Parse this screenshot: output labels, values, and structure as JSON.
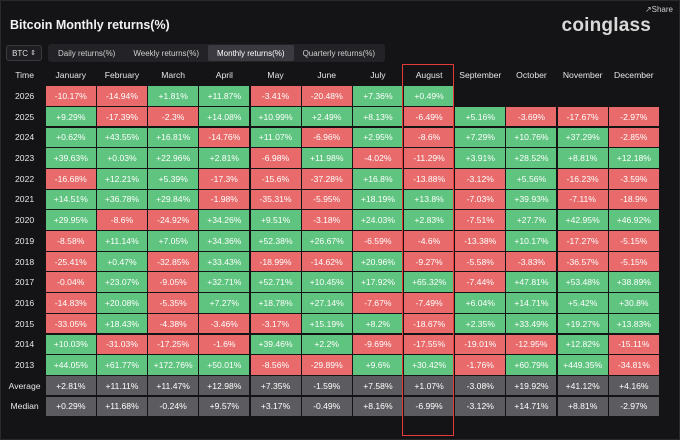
{
  "header": {
    "title": "Bitcoin Monthly returns(%)",
    "brand": "coinglass",
    "share_label": "Share"
  },
  "controls": {
    "coin": "BTC",
    "tabs": [
      "Daily returns(%)",
      "Weekly returns(%)",
      "Monthly returns(%)",
      "Quarterly returns(%)"
    ],
    "active_tab": 2
  },
  "colors": {
    "positive": "#5ec47f",
    "negative": "#e86a6a",
    "stat": "#5c5c60",
    "highlight": "#e33a3a"
  },
  "table": {
    "time_header": "Time",
    "months": [
      "January",
      "February",
      "March",
      "April",
      "May",
      "June",
      "July",
      "August",
      "September",
      "October",
      "November",
      "December"
    ],
    "highlighted_month": "August",
    "rows": [
      {
        "label": "2026",
        "kind": "year",
        "values": [
          "-10.17%",
          "-14.94%",
          "+1.81%",
          "+11.87%",
          "-3.41%",
          "-20.48%",
          "+7.36%",
          "+0.49%",
          "",
          "",
          "",
          ""
        ]
      },
      {
        "label": "2025",
        "kind": "year",
        "values": [
          "+9.29%",
          "-17.39%",
          "-2.3%",
          "+14.08%",
          "+10.99%",
          "+2.49%",
          "+8.13%",
          "-6.49%",
          "+5.16%",
          "-3.69%",
          "-17.67%",
          "-2.97%"
        ]
      },
      {
        "label": "2024",
        "kind": "year",
        "values": [
          "+0.62%",
          "+43.55%",
          "+16.81%",
          "-14.76%",
          "+11.07%",
          "-6.96%",
          "+2.95%",
          "-8.6%",
          "+7.29%",
          "+10.76%",
          "+37.29%",
          "-2.85%"
        ]
      },
      {
        "label": "2023",
        "kind": "year",
        "values": [
          "+39.63%",
          "+0.03%",
          "+22.96%",
          "+2.81%",
          "-6.98%",
          "+11.98%",
          "-4.02%",
          "-11.29%",
          "+3.91%",
          "+28.52%",
          "+8.81%",
          "+12.18%"
        ]
      },
      {
        "label": "2022",
        "kind": "year",
        "values": [
          "-16.68%",
          "+12.21%",
          "+5.39%",
          "-17.3%",
          "-15.6%",
          "-37.28%",
          "+16.8%",
          "-13.88%",
          "-3.12%",
          "+5.56%",
          "-16.23%",
          "-3.59%"
        ]
      },
      {
        "label": "2021",
        "kind": "year",
        "values": [
          "+14.51%",
          "+36.78%",
          "+29.84%",
          "-1.98%",
          "-35.31%",
          "-5.95%",
          "+18.19%",
          "+13.8%",
          "-7.03%",
          "+39.93%",
          "-7.11%",
          "-18.9%"
        ]
      },
      {
        "label": "2020",
        "kind": "year",
        "values": [
          "+29.95%",
          "-8.6%",
          "-24.92%",
          "+34.26%",
          "+9.51%",
          "-3.18%",
          "+24.03%",
          "+2.83%",
          "-7.51%",
          "+27.7%",
          "+42.95%",
          "+46.92%"
        ]
      },
      {
        "label": "2019",
        "kind": "year",
        "values": [
          "-8.58%",
          "+11.14%",
          "+7.05%",
          "+34.36%",
          "+52.38%",
          "+26.67%",
          "-6.59%",
          "-4.6%",
          "-13.38%",
          "+10.17%",
          "-17.27%",
          "-5.15%"
        ]
      },
      {
        "label": "2018",
        "kind": "year",
        "values": [
          "-25.41%",
          "+0.47%",
          "-32.85%",
          "+33.43%",
          "-18.99%",
          "-14.62%",
          "+20.96%",
          "-9.27%",
          "-5.58%",
          "-3.83%",
          "-36.57%",
          "-5.15%"
        ]
      },
      {
        "label": "2017",
        "kind": "year",
        "values": [
          "-0.04%",
          "+23.07%",
          "-9.05%",
          "+32.71%",
          "+52.71%",
          "+10.45%",
          "+17.92%",
          "+65.32%",
          "-7.44%",
          "+47.81%",
          "+53.48%",
          "+38.89%"
        ]
      },
      {
        "label": "2016",
        "kind": "year",
        "values": [
          "-14.83%",
          "+20.08%",
          "-5.35%",
          "+7.27%",
          "+18.78%",
          "+27.14%",
          "-7.67%",
          "-7.49%",
          "+6.04%",
          "+14.71%",
          "+5.42%",
          "+30.8%"
        ]
      },
      {
        "label": "2015",
        "kind": "year",
        "values": [
          "-33.05%",
          "+18.43%",
          "-4.38%",
          "-3.46%",
          "-3.17%",
          "+15.19%",
          "+8.2%",
          "-18.67%",
          "+2.35%",
          "+33.49%",
          "+19.27%",
          "+13.83%"
        ]
      },
      {
        "label": "2014",
        "kind": "year",
        "values": [
          "+10.03%",
          "-31.03%",
          "-17.25%",
          "-1.6%",
          "+39.46%",
          "+2.2%",
          "-9.69%",
          "-17.55%",
          "-19.01%",
          "-12.95%",
          "+12.82%",
          "-15.11%"
        ]
      },
      {
        "label": "2013",
        "kind": "year",
        "values": [
          "+44.05%",
          "+61.77%",
          "+172.76%",
          "+50.01%",
          "-8.56%",
          "-29.89%",
          "+9.6%",
          "+30.42%",
          "-1.76%",
          "+60.79%",
          "+449.35%",
          "-34.81%"
        ]
      },
      {
        "label": "Average",
        "kind": "stat",
        "values": [
          "+2.81%",
          "+11.11%",
          "+11.47%",
          "+12.98%",
          "+7.35%",
          "-1.59%",
          "+7.58%",
          "+1.07%",
          "-3.08%",
          "+19.92%",
          "+41.12%",
          "+4.16%"
        ]
      },
      {
        "label": "Median",
        "kind": "stat",
        "values": [
          "+0.29%",
          "+11.68%",
          "-0.24%",
          "+9.57%",
          "+3.17%",
          "-0.49%",
          "+8.16%",
          "-6.99%",
          "-3.12%",
          "+14.71%",
          "+8.81%",
          "-2.97%"
        ]
      }
    ]
  }
}
